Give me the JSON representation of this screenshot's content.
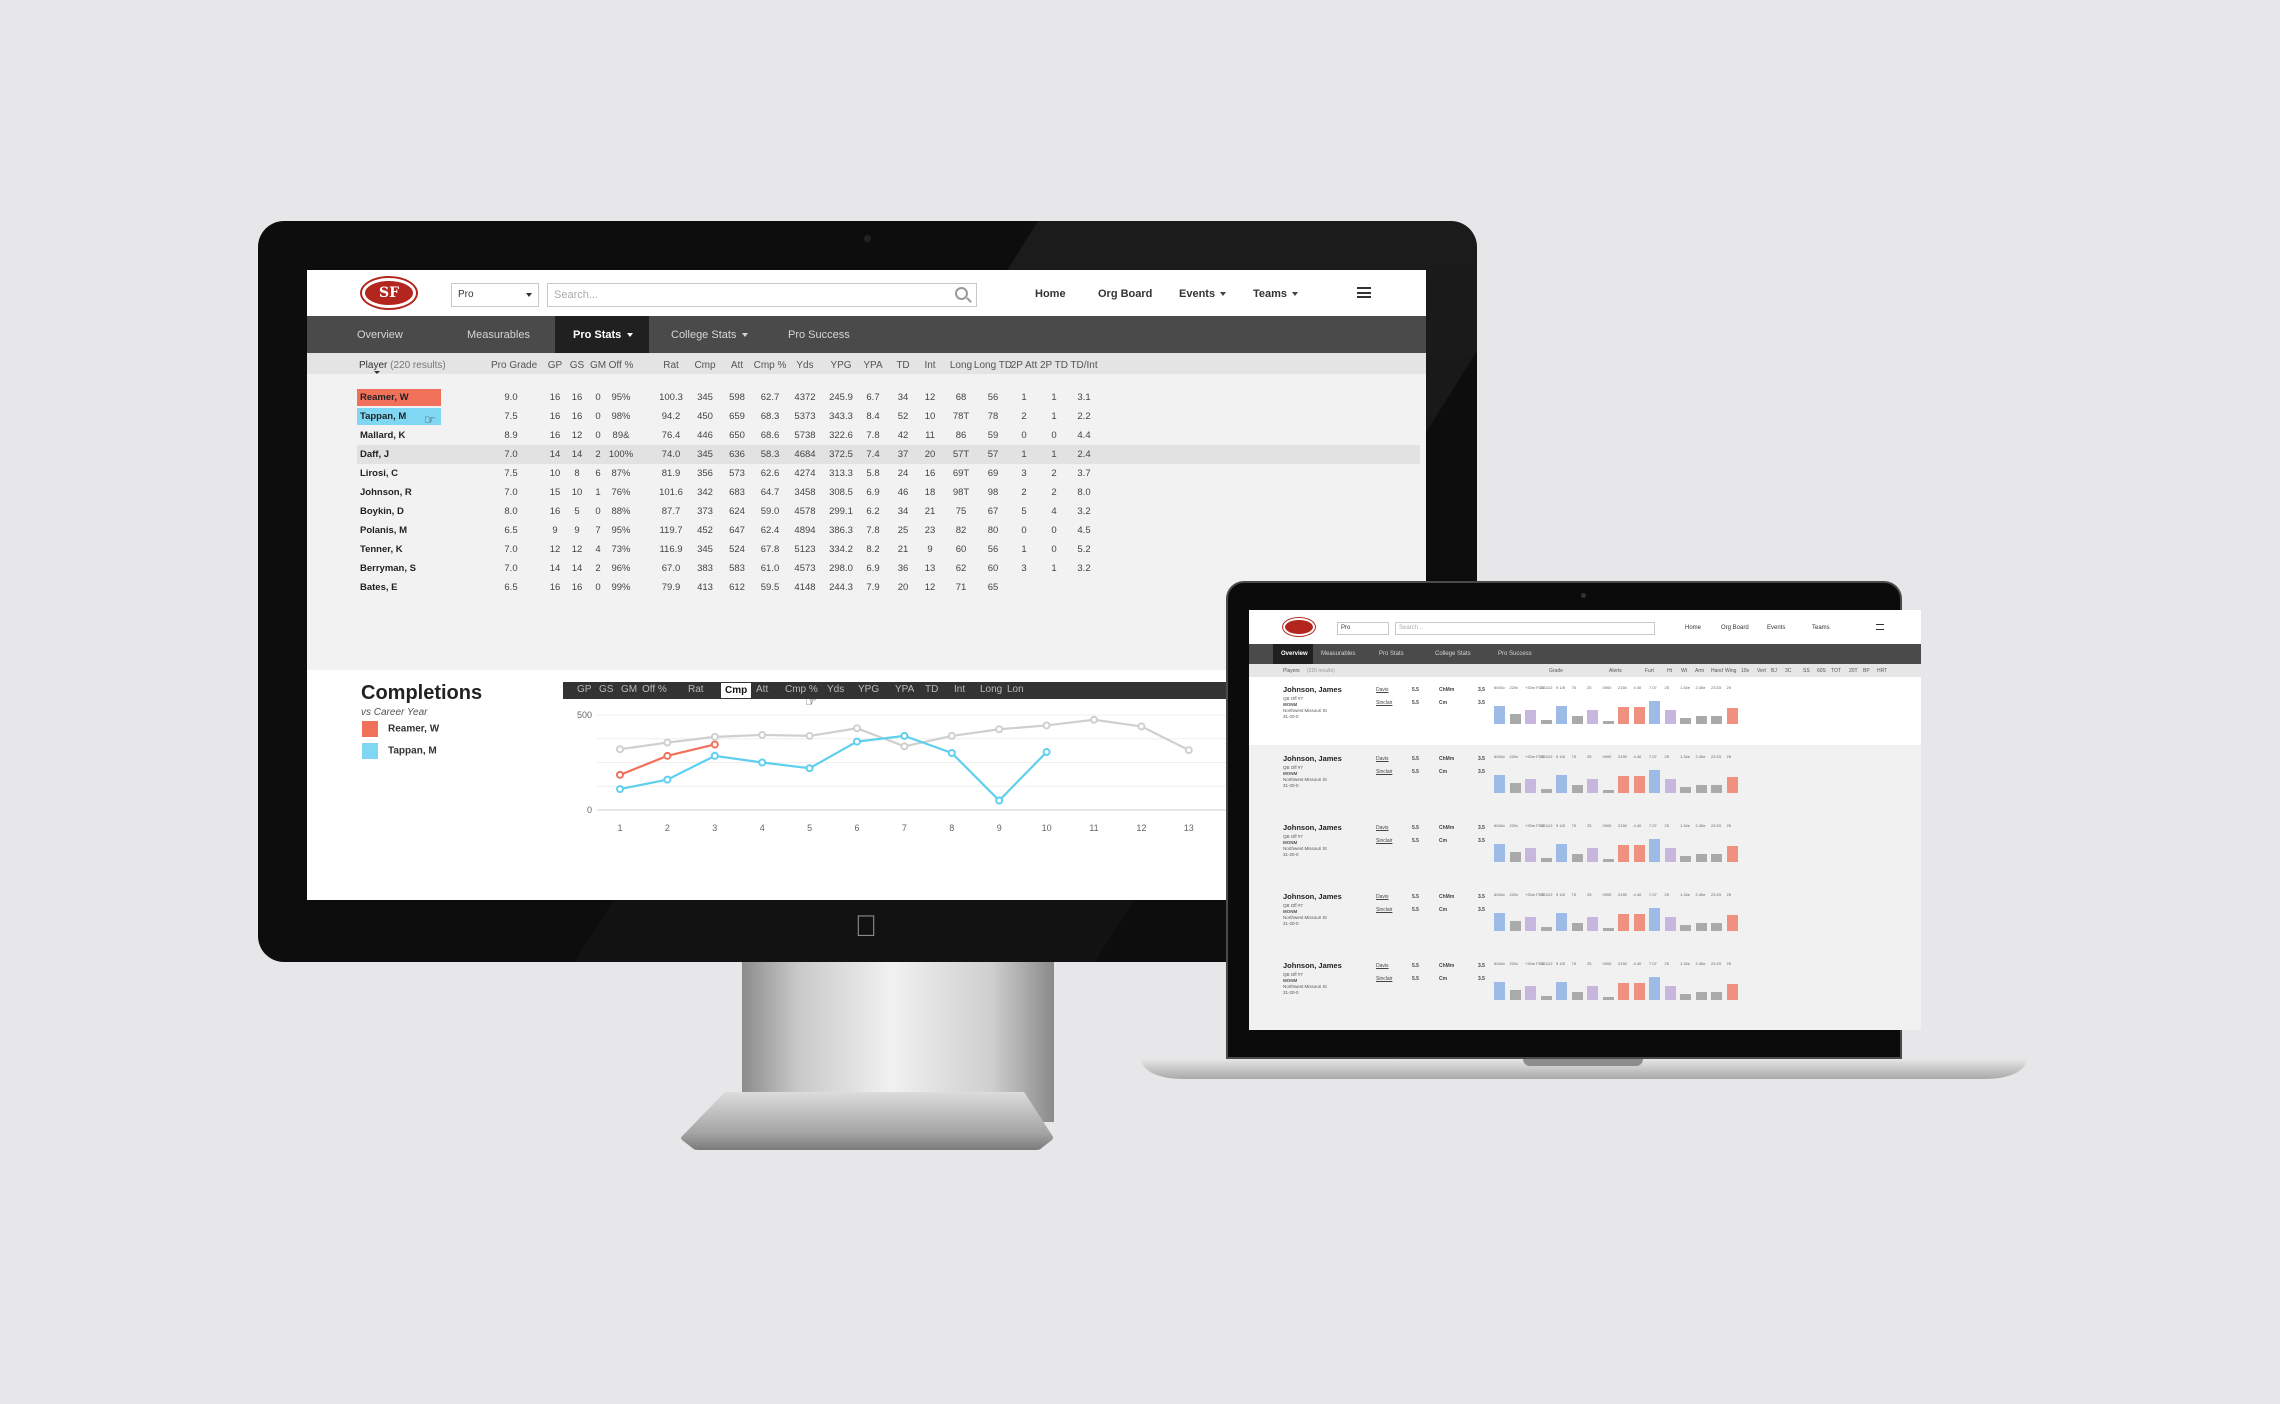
{
  "app": {
    "logo_text": "SF",
    "level_select": "Pro",
    "search_placeholder": "Search...",
    "nav": [
      "Home",
      "Org Board",
      "Events",
      "Teams"
    ],
    "tabs": [
      "Overview",
      "Measurables",
      "Pro Stats",
      "College Stats",
      "Pro Success"
    ],
    "active_tab_desktop": "Pro Stats",
    "active_tab_laptop": "Overview"
  },
  "stats_table": {
    "player_header": "Player",
    "result_count": "(220 results)",
    "columns": [
      "Pro Grade",
      "GP",
      "GS",
      "GM",
      "Off %",
      "Rat",
      "Cmp",
      "Att",
      "Cmp %",
      "Yds",
      "YPG",
      "YPA",
      "TD",
      "Int",
      "Long",
      "Long TD",
      "2P Att",
      "2P TD",
      "TD/Int"
    ],
    "rows": [
      {
        "name": "Reamer, W",
        "highlight": "#f0705a",
        "values": [
          "9.0",
          "16",
          "16",
          "0",
          "95%",
          "100.3",
          "345",
          "598",
          "62.7",
          "4372",
          "245.9",
          "6.7",
          "34",
          "12",
          "68",
          "56",
          "1",
          "1",
          "3.1"
        ]
      },
      {
        "name": "Tappan, M",
        "highlight": "#7fd7f3",
        "values": [
          "7.5",
          "16",
          "16",
          "0",
          "98%",
          "94.2",
          "450",
          "659",
          "68.3",
          "5373",
          "343.3",
          "8.4",
          "52",
          "10",
          "78T",
          "78",
          "2",
          "1",
          "2.2"
        ]
      },
      {
        "name": "Mallard, K",
        "highlight": "",
        "values": [
          "8.9",
          "16",
          "12",
          "0",
          "89&",
          "76.4",
          "446",
          "650",
          "68.6",
          "5738",
          "322.6",
          "7.8",
          "42",
          "11",
          "86",
          "59",
          "0",
          "0",
          "4.4"
        ]
      },
      {
        "name": "Daff, J",
        "highlight": "",
        "values": [
          "7.0",
          "14",
          "14",
          "2",
          "100%",
          "74.0",
          "345",
          "636",
          "58.3",
          "4684",
          "372.5",
          "7.4",
          "37",
          "20",
          "57T",
          "57",
          "1",
          "1",
          "2.4"
        ]
      },
      {
        "name": "Lirosi, C",
        "highlight": "",
        "values": [
          "7.5",
          "10",
          "8",
          "6",
          "87%",
          "81.9",
          "356",
          "573",
          "62.6",
          "4274",
          "313.3",
          "5.8",
          "24",
          "16",
          "69T",
          "69",
          "3",
          "2",
          "3.7"
        ]
      },
      {
        "name": "Johnson, R",
        "highlight": "",
        "values": [
          "7.0",
          "15",
          "10",
          "1",
          "76%",
          "101.6",
          "342",
          "683",
          "64.7",
          "3458",
          "308.5",
          "6.9",
          "46",
          "18",
          "98T",
          "98",
          "2",
          "2",
          "8.0"
        ]
      },
      {
        "name": "Boykin, D",
        "highlight": "",
        "values": [
          "8.0",
          "16",
          "5",
          "0",
          "88%",
          "87.7",
          "373",
          "624",
          "59.0",
          "4578",
          "299.1",
          "6.2",
          "34",
          "21",
          "75",
          "67",
          "5",
          "4",
          "3.2"
        ]
      },
      {
        "name": "Polanis, M",
        "highlight": "",
        "values": [
          "6.5",
          "9",
          "9",
          "7",
          "95%",
          "119.7",
          "452",
          "647",
          "62.4",
          "4894",
          "386.3",
          "7.8",
          "25",
          "23",
          "82",
          "80",
          "0",
          "0",
          "4.5"
        ]
      },
      {
        "name": "Tenner, K",
        "highlight": "",
        "values": [
          "7.0",
          "12",
          "12",
          "4",
          "73%",
          "116.9",
          "345",
          "524",
          "67.8",
          "5123",
          "334.2",
          "8.2",
          "21",
          "9",
          "60",
          "56",
          "1",
          "0",
          "5.2"
        ]
      },
      {
        "name": "Berryman, S",
        "highlight": "",
        "values": [
          "7.0",
          "14",
          "14",
          "2",
          "96%",
          "67.0",
          "383",
          "583",
          "61.0",
          "4573",
          "298.0",
          "6.9",
          "36",
          "13",
          "62",
          "60",
          "3",
          "1",
          "3.2"
        ]
      },
      {
        "name": "Bates, E",
        "highlight": "",
        "values": [
          "6.5",
          "16",
          "16",
          "0",
          "99%",
          "79.9",
          "413",
          "612",
          "59.5",
          "4148",
          "244.3",
          "7.9",
          "20",
          "12",
          "71",
          "65",
          "",
          "",
          ""
        ]
      }
    ]
  },
  "chart_panel": {
    "title": "Completions",
    "subtitle": "vs Career Year",
    "legend": [
      {
        "label": "Reamer, W",
        "color": "#f0705a"
      },
      {
        "label": "Tappan, M",
        "color": "#5fcfee"
      }
    ],
    "metrics": [
      "GP",
      "GS",
      "GM",
      "Off %",
      "Rat",
      "Cmp",
      "Att",
      "Cmp %",
      "Yds",
      "YPG",
      "YPA",
      "TD",
      "Int",
      "Long",
      "Lon"
    ],
    "active_metric": "Cmp"
  },
  "chart_data": {
    "type": "line",
    "title": "Completions",
    "subtitle": "vs Career Year",
    "x": [
      1,
      2,
      3,
      4,
      5,
      6,
      7,
      8,
      9,
      10,
      11,
      12,
      13
    ],
    "ylim": [
      0,
      500
    ],
    "yticks": [
      0,
      500
    ],
    "grid": true,
    "series": [
      {
        "name": "Reamer, W",
        "color": "#f0705a",
        "values": [
          185,
          285,
          345,
          null,
          null,
          null,
          null,
          null,
          null,
          null,
          null,
          null,
          null
        ]
      },
      {
        "name": "",
        "color": "#cfcfcf",
        "values": [
          320,
          355,
          385,
          395,
          390,
          430,
          335,
          390,
          425,
          445,
          475,
          440,
          315
        ]
      },
      {
        "name": "Tappan, M",
        "color": "#5fcfee",
        "values": [
          110,
          160,
          285,
          250,
          220,
          360,
          390,
          300,
          50,
          305,
          null,
          null,
          null
        ]
      }
    ]
  },
  "laptop_table": {
    "columns": [
      "Players",
      "Grade",
      "Alerts",
      "Furt",
      "Ht",
      "Wt",
      "Arm",
      "Hand",
      "Wing",
      "10s",
      "Vert",
      "BJ",
      "3C",
      "SS",
      "60S",
      "TOT",
      "20T",
      "BP",
      "HRT"
    ],
    "result_count": "(220 results)",
    "rows": [
      {
        "name": "Johnson, James",
        "pos": "QB  Off  #7",
        "meta1": "MONM",
        "meta2": "Northwest Missouri St",
        "meta3": "31-20-0",
        "grade1": "Davis",
        "grade1_val": "5.5",
        "grade2": "Sinclair",
        "grade2_val": "5.5",
        "alert1": "ChMm",
        "alert2": "Cm",
        "furt1": "3.5",
        "furt2": "3.5",
        "ticks": [
          "6040v",
          "220v",
          "+33m FD3",
          "3311/2",
          "9 1/8",
          "75",
          "25",
          "0900",
          "2150",
          "4.40",
          "7.07",
          "25",
          "1.34e",
          "2.45e",
          "23.53",
          "25"
        ],
        "bars": [
          0.75,
          0.4,
          0.6,
          0.15,
          0.75,
          0.35,
          0.6,
          0.12,
          0.7,
          0.7,
          0.95,
          0.6,
          0.25,
          0.35,
          0.35,
          0.65
        ]
      },
      {
        "name": "Johnson, James",
        "pos": "QB  Off  #7",
        "meta1": "MONM",
        "meta2": "Northwest Missouri St",
        "meta3": "31-20-0",
        "grade1": "Davis",
        "grade1_val": "5.5",
        "grade2": "Sinclair",
        "grade2_val": "5.5",
        "alert1": "ChMm",
        "alert2": "Cm",
        "furt1": "3.5",
        "furt2": "3.5",
        "ticks": [
          "6040v",
          "220v",
          "+33m FD3",
          "3311/2",
          "9 1/8",
          "75",
          "25",
          "0900",
          "2150",
          "4.40",
          "7.07",
          "25",
          "1.34e",
          "2.45e",
          "23.53",
          "25"
        ],
        "bars": [
          0.75,
          0.4,
          0.6,
          0.15,
          0.75,
          0.35,
          0.6,
          0.12,
          0.7,
          0.7,
          0.95,
          0.6,
          0.25,
          0.35,
          0.35,
          0.65
        ]
      },
      {
        "name": "Johnson, James",
        "pos": "QB  Off  #7",
        "meta1": "MONM",
        "meta2": "Northwest Missouri St",
        "meta3": "31-20-0",
        "grade1": "Davis",
        "grade1_val": "5.5",
        "grade2": "Sinclair",
        "grade2_val": "5.5",
        "alert1": "ChMm",
        "alert2": "Cm",
        "furt1": "3.5",
        "furt2": "3.5",
        "ticks": [
          "6040v",
          "220v",
          "+33m FD3",
          "3311/2",
          "9 1/8",
          "75",
          "25",
          "0900",
          "2150",
          "4.40",
          "7.07",
          "25",
          "1.34e",
          "2.45e",
          "23.53",
          "25"
        ],
        "bars": [
          0.75,
          0.4,
          0.6,
          0.15,
          0.75,
          0.35,
          0.6,
          0.12,
          0.7,
          0.7,
          0.95,
          0.6,
          0.25,
          0.35,
          0.35,
          0.65
        ]
      },
      {
        "name": "Johnson, James",
        "pos": "QB  Off  #7",
        "meta1": "MONM",
        "meta2": "Northwest Missouri St",
        "meta3": "31-20-0",
        "grade1": "Davis",
        "grade1_val": "5.5",
        "grade2": "Sinclair",
        "grade2_val": "5.5",
        "alert1": "ChMm",
        "alert2": "Cm",
        "furt1": "3.5",
        "furt2": "3.5",
        "ticks": [
          "6040v",
          "220v",
          "+33m FD3",
          "3311/2",
          "9 1/8",
          "75",
          "25",
          "0900",
          "2150",
          "4.40",
          "7.07",
          "25",
          "1.34e",
          "2.45e",
          "23.53",
          "25"
        ],
        "bars": [
          0.75,
          0.4,
          0.6,
          0.15,
          0.75,
          0.35,
          0.6,
          0.12,
          0.7,
          0.7,
          0.95,
          0.6,
          0.25,
          0.35,
          0.35,
          0.65
        ]
      },
      {
        "name": "Johnson, James",
        "pos": "QB  Off  #7",
        "meta1": "MONM",
        "meta2": "Northwest Missouri St",
        "meta3": "31-20-0",
        "grade1": "Davis",
        "grade1_val": "5.5",
        "grade2": "Sinclair",
        "grade2_val": "5.5",
        "alert1": "ChMm",
        "alert2": "Cm",
        "furt1": "3.5",
        "furt2": "3.5",
        "ticks": [
          "6040v",
          "220v",
          "+33m FD3",
          "3311/2",
          "9 1/8",
          "75",
          "25",
          "0900",
          "2150",
          "4.40",
          "7.07",
          "25",
          "1.34e",
          "2.45e",
          "23.53",
          "25"
        ],
        "bars": [
          0.75,
          0.4,
          0.6,
          0.15,
          0.75,
          0.35,
          0.6,
          0.12,
          0.7,
          0.7,
          0.95,
          0.6,
          0.25,
          0.35,
          0.35,
          0.65
        ]
      }
    ],
    "bar_colors": [
      "#9dbbe6",
      "#aaaaaa",
      "#c7b6de",
      "#aaaaaa",
      "#9dbbe6",
      "#aaaaaa",
      "#c7b6de",
      "#aaaaaa",
      "#f0907f",
      "#f0907f",
      "#9dbbe6",
      "#c7b6de",
      "#aaaaaa",
      "#aaaaaa",
      "#aaaaaa",
      "#f0907f"
    ]
  }
}
